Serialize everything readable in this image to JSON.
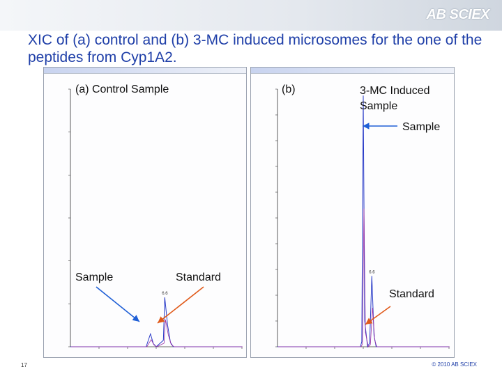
{
  "slide": {
    "title": "XIC of (a) control and (b) 3-MC induced microsomes for the one of the peptides from Cyp1A2.",
    "logo": "AB SCIEX",
    "slide_number": "17",
    "copyright": "© 2010 AB SCIEX"
  },
  "colors": {
    "title": "#1f3fa8",
    "trace": "#2a3cc8",
    "trace_secondary": "#9b2fa3",
    "arrow_sample": "#1f5fd6",
    "arrow_standard": "#e05a1a"
  },
  "chart_data": [
    {
      "type": "line",
      "panel": "a",
      "caption": "(a)   Control Sample",
      "annotations": [
        {
          "text": "Sample",
          "arrow_color": "blue"
        },
        {
          "text": "Standard",
          "arrow_color": "orange"
        }
      ],
      "peak_label": "6.6",
      "xlim": [
        0,
        12
      ],
      "ylim": [
        0,
        120000
      ],
      "yticks": [
        0,
        20000,
        40000,
        60000,
        80000,
        100000,
        120000
      ],
      "xticks": [
        2,
        4,
        6,
        8,
        10,
        12
      ],
      "series": [
        {
          "values": [
            [
              0,
              0
            ],
            [
              5.0,
              0
            ],
            [
              5.3,
              0
            ],
            [
              5.6,
              6000
            ],
            [
              5.8,
              1500
            ],
            [
              6.0,
              0
            ],
            [
              6.5,
              3000
            ],
            [
              6.6,
              23000
            ],
            [
              6.8,
              10000
            ],
            [
              7.0,
              2000
            ],
            [
              7.2,
              0
            ],
            [
              12,
              0
            ]
          ]
        }
      ]
    },
    {
      "type": "line",
      "panel": "b",
      "caption_left": "(b)",
      "caption_right": "3-MC Induced Sample",
      "annotations": [
        {
          "text": "Sample",
          "arrow_color": "blue"
        },
        {
          "text": "Standard",
          "arrow_color": "orange"
        }
      ],
      "peak_label": "6.6",
      "xlim": [
        0,
        12
      ],
      "ylim": [
        0,
        2000000
      ],
      "xticks": [
        2,
        4,
        6,
        8,
        10,
        12
      ],
      "series": [
        {
          "values": [
            [
              0,
              0
            ],
            [
              5.5,
              0
            ],
            [
              5.8,
              0
            ],
            [
              5.9,
              40000
            ],
            [
              6.0,
              1950000
            ],
            [
              6.1,
              200000
            ],
            [
              6.3,
              0
            ],
            [
              6.45,
              30000
            ],
            [
              6.6,
              550000
            ],
            [
              6.75,
              90000
            ],
            [
              6.9,
              0
            ],
            [
              12,
              0
            ]
          ]
        }
      ]
    }
  ]
}
